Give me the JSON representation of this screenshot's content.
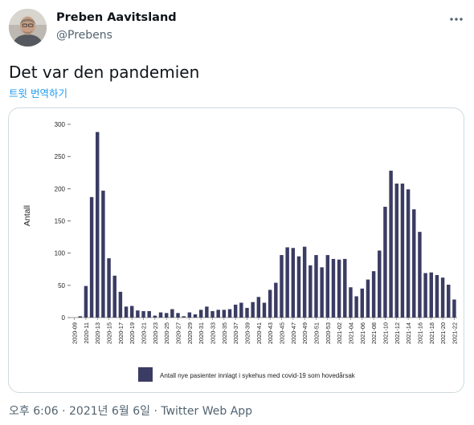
{
  "author": {
    "name": "Preben Aavitsland",
    "handle": "@Prebens"
  },
  "tweet": {
    "text": "Det var den pandemien",
    "translate_label": "트윗 번역하기"
  },
  "footer": {
    "time": "오후 6:06",
    "separator1": " · ",
    "date": "2021년 6월 6일",
    "separator2": " · ",
    "source": "Twitter Web App"
  },
  "icons": {
    "more": "more-icon",
    "avatar": "avatar-photo"
  },
  "colors": {
    "bar": "#3b3c63",
    "link": "#1d9bf0",
    "muted": "#536471"
  },
  "chart_data": {
    "type": "bar",
    "ylabel": "Antall",
    "ylim": [
      0,
      300
    ],
    "yticks": [
      0,
      50,
      100,
      150,
      200,
      250,
      300
    ],
    "legend": "Antall nye pasienter innlagt i sykehus med covid-19 som hovedårsak",
    "legend_position": "bottom",
    "categories": [
      "2020-09",
      "2020-10",
      "2020-11",
      "2020-12",
      "2020-13",
      "2020-14",
      "2020-15",
      "2020-16",
      "2020-17",
      "2020-18",
      "2020-19",
      "2020-20",
      "2020-21",
      "2020-22",
      "2020-23",
      "2020-24",
      "2020-25",
      "2020-26",
      "2020-27",
      "2020-28",
      "2020-29",
      "2020-30",
      "2020-31",
      "2020-32",
      "2020-33",
      "2020-34",
      "2020-35",
      "2020-36",
      "2020-37",
      "2020-38",
      "2020-39",
      "2020-40",
      "2020-41",
      "2020-42",
      "2020-43",
      "2020-44",
      "2020-45",
      "2020-46",
      "2020-47",
      "2020-48",
      "2020-49",
      "2020-50",
      "2020-51",
      "2020-52",
      "2020-53",
      "2021-01",
      "2021-02",
      "2021-03",
      "2021-04",
      "2021-05",
      "2021-06",
      "2021-07",
      "2021-08",
      "2021-09",
      "2021-10",
      "2021-11",
      "2021-12",
      "2021-13",
      "2021-14",
      "2021-15",
      "2021-16",
      "2021-17",
      "2021-18",
      "2021-19",
      "2021-20",
      "2021-21",
      "2021-22"
    ],
    "tick_labels": [
      "2020-09",
      "2020-11",
      "2020-13",
      "2020-15",
      "2020-17",
      "2020-19",
      "2020-21",
      "2020-23",
      "2020-25",
      "2020-27",
      "2020-29",
      "2020-31",
      "2020-33",
      "2020-35",
      "2020-37",
      "2020-39",
      "2020-41",
      "2020-43",
      "2020-45",
      "2020-47",
      "2020-49",
      "2020-51",
      "2020-53",
      "2021-02",
      "2021-04",
      "2021-06",
      "2021-08",
      "2021-10",
      "2021-12",
      "2021-14",
      "2021-16",
      "2021-18",
      "2021-20",
      "2021-22"
    ],
    "values": [
      0,
      2,
      49,
      187,
      288,
      197,
      92,
      65,
      40,
      17,
      18,
      11,
      10,
      10,
      3,
      8,
      7,
      13,
      7,
      2,
      8,
      5,
      12,
      17,
      10,
      12,
      12,
      13,
      20,
      23,
      15,
      24,
      32,
      23,
      43,
      54,
      97,
      109,
      108,
      95,
      110,
      81,
      97,
      78,
      97,
      91,
      90,
      91,
      47,
      33,
      45,
      59,
      72,
      104,
      172,
      228,
      208,
      208,
      199,
      168,
      133,
      69,
      70,
      66,
      62,
      51,
      28
    ]
  }
}
